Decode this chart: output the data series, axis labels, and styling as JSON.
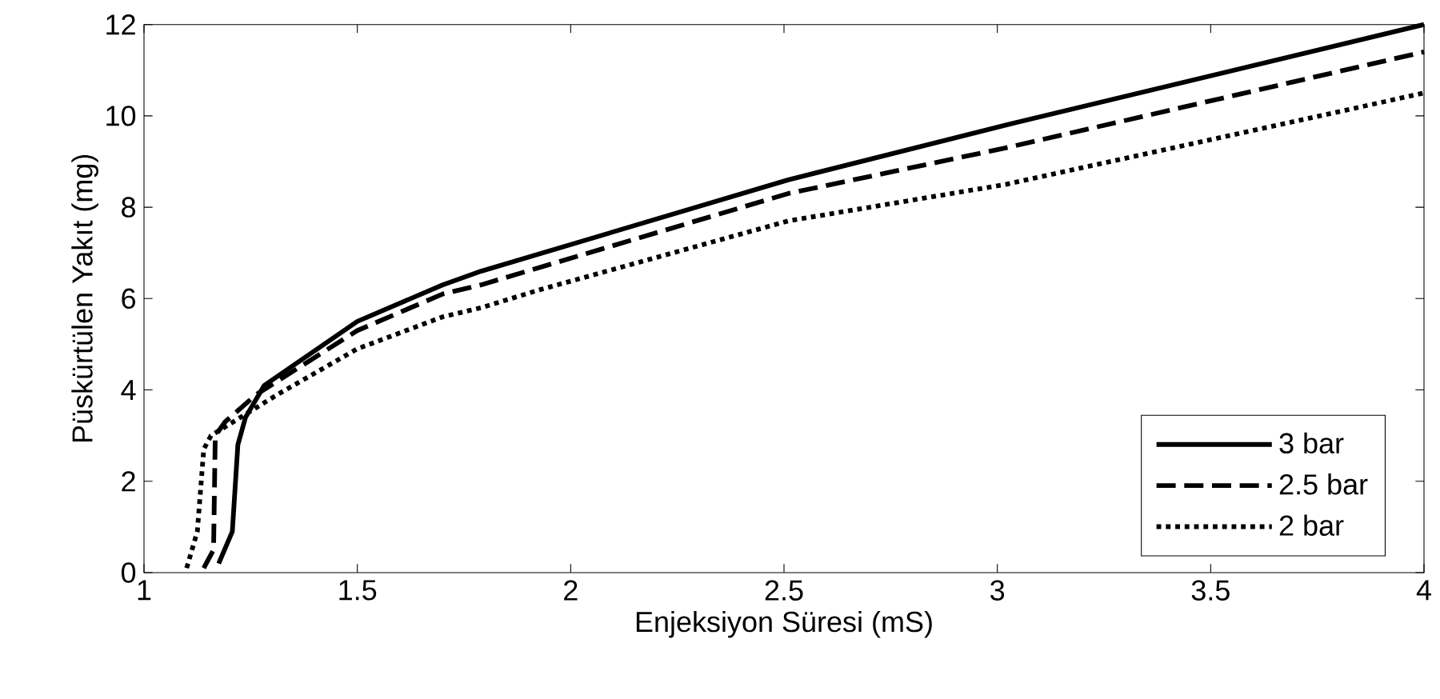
{
  "chart_data": {
    "type": "line",
    "xlabel": "Enjeksiyon Süresi (mS)",
    "ylabel": "Püskürtülen Yakıt (mg)",
    "xlim": [
      1,
      4
    ],
    "ylim": [
      0,
      12
    ],
    "xticks": [
      1,
      1.5,
      2,
      2.5,
      3,
      3.5,
      4
    ],
    "yticks": [
      0,
      2,
      4,
      6,
      8,
      10,
      12
    ],
    "legend": "bottom right",
    "grid": false,
    "series": [
      {
        "name": "3 bar",
        "color": "#000000",
        "line_style": "solid",
        "x": [
          1.175,
          1.207,
          1.22,
          1.238,
          1.282,
          1.5,
          1.7,
          1.79,
          2.51,
          3.02,
          4.0
        ],
        "values": [
          0.2,
          0.9,
          2.8,
          3.4,
          4.1,
          5.5,
          6.3,
          6.6,
          8.6,
          9.8,
          12.0
        ]
      },
      {
        "name": "2.5 bar",
        "color": "#000000",
        "line_style": "dashed",
        "x": [
          1.14,
          1.163,
          1.167,
          1.19,
          1.263,
          1.5,
          1.7,
          1.79,
          2.51,
          3.02,
          4.0
        ],
        "values": [
          0.1,
          0.5,
          3.0,
          3.3,
          3.9,
          5.3,
          6.1,
          6.3,
          8.3,
          9.3,
          11.4
        ]
      },
      {
        "name": "2 bar",
        "color": "#000000",
        "line_style": "dotted",
        "x": [
          1.1,
          1.125,
          1.14,
          1.157,
          1.313,
          1.5,
          1.7,
          1.79,
          1.93,
          2.51,
          3.02,
          4.0
        ],
        "values": [
          0.1,
          0.9,
          2.7,
          3.0,
          3.9,
          4.9,
          5.6,
          5.8,
          6.2,
          7.7,
          8.5,
          10.5
        ]
      }
    ]
  }
}
